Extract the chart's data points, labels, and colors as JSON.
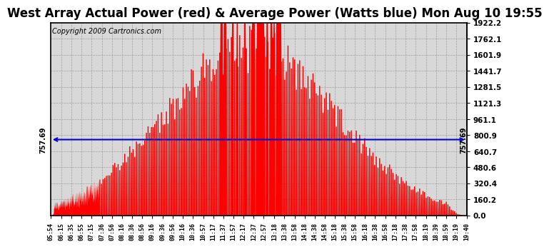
{
  "title": "West Array Actual Power (red) & Average Power (Watts blue) Mon Aug 10 19:55",
  "copyright": "Copyright 2009 Cartronics.com",
  "avg_power": 757.69,
  "y_max": 1922.2,
  "y_min": 0.0,
  "y_ticks": [
    0.0,
    160.2,
    320.4,
    480.6,
    640.7,
    800.9,
    961.1,
    1121.3,
    1281.5,
    1441.7,
    1601.9,
    1762.1,
    1922.2
  ],
  "background_color": "#d8d8d8",
  "bar_color": "#ff0000",
  "line_color": "#0000cc",
  "grid_color": "#999999",
  "title_fontsize": 12,
  "copyright_fontsize": 7,
  "time_labels": [
    "05:54",
    "06:15",
    "06:35",
    "06:55",
    "07:15",
    "07:36",
    "07:56",
    "08:16",
    "08:36",
    "08:56",
    "09:16",
    "09:36",
    "09:56",
    "10:16",
    "10:36",
    "10:57",
    "11:17",
    "11:37",
    "11:57",
    "12:17",
    "12:37",
    "12:57",
    "13:18",
    "13:38",
    "13:58",
    "14:18",
    "14:38",
    "14:58",
    "15:18",
    "15:38",
    "15:58",
    "16:18",
    "16:38",
    "16:58",
    "17:18",
    "17:38",
    "17:58",
    "18:19",
    "18:39",
    "18:59",
    "19:19",
    "19:40"
  ]
}
